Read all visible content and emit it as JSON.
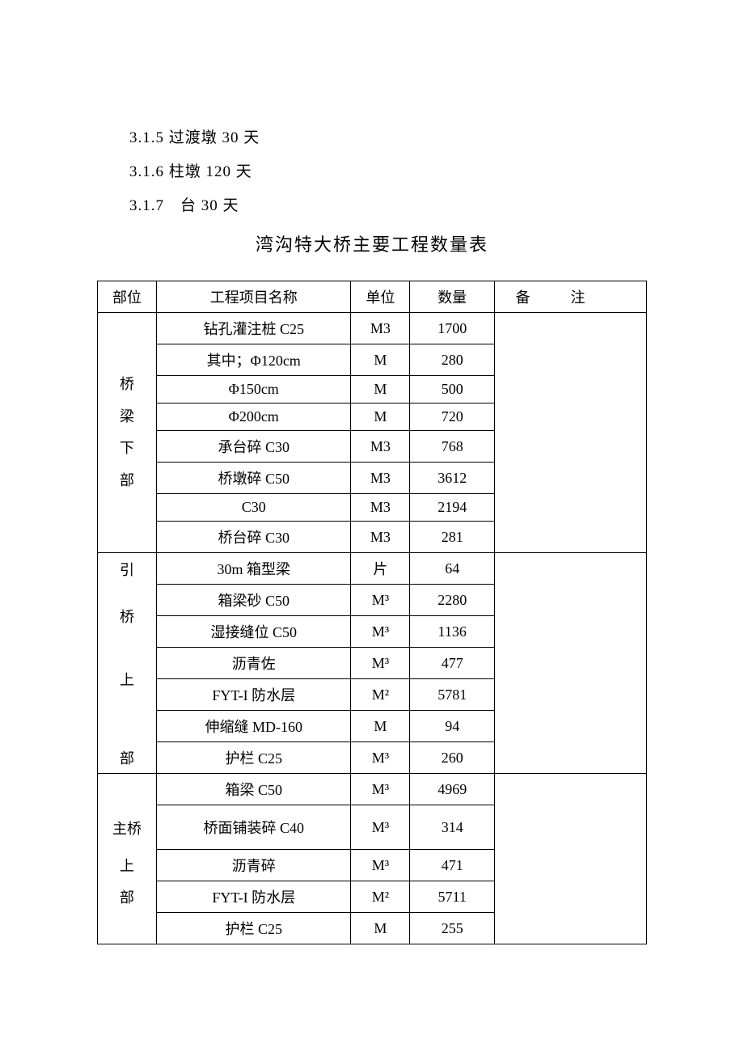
{
  "textLines": [
    "3.1.5  过渡墩 30 天",
    "3.1.6  柱墩 120 天",
    "3.1.7 台 30 天"
  ],
  "tableTitle": "湾沟特大桥主要工程数量表",
  "headers": {
    "section": "部位",
    "name": "工程项目名称",
    "unit": "单位",
    "qty": "数量",
    "remark": "备注"
  },
  "sections": {
    "s1": "桥\n梁\n下\n部",
    "s2_1": "引",
    "s2_2": "桥",
    "s2_3": "上",
    "s2_4": "部",
    "s3_1": "主桥",
    "s3_2": "上",
    "s3_3": "部"
  },
  "rows": {
    "r1": {
      "name": "钻孔灌注桩 C25",
      "unit": "M3",
      "qty": "1700"
    },
    "r2": {
      "name": "其中；Φ120cm",
      "unit": "M",
      "qty": "280"
    },
    "r3": {
      "name": "Φ150cm",
      "unit": "M",
      "qty": "500"
    },
    "r4": {
      "name": "Φ200cm",
      "unit": "M",
      "qty": "720"
    },
    "r5": {
      "name": "承台碎 C30",
      "unit": "M3",
      "qty": "768"
    },
    "r6": {
      "name": "桥墩碎 C50",
      "unit": "M3",
      "qty": "3612"
    },
    "r7": {
      "name": "C30",
      "unit": "M3",
      "qty": "2194"
    },
    "r8": {
      "name": "桥台碎 C30",
      "unit": "M3",
      "qty": "281"
    },
    "r9": {
      "name": "30m 箱型梁",
      "unit": "片",
      "qty": "64"
    },
    "r10": {
      "name": "箱梁砂 C50",
      "unit": "M³",
      "qty": "2280"
    },
    "r11": {
      "name": "湿接缝位 C50",
      "unit": "M³",
      "qty": "1136"
    },
    "r12": {
      "name": "沥青佐",
      "unit": "M³",
      "qty": "477"
    },
    "r13": {
      "name": "FYT-I 防水层",
      "unit": "M²",
      "qty": "5781"
    },
    "r14": {
      "name": "伸缩缝 MD-160",
      "unit": "M",
      "qty": "94"
    },
    "r15": {
      "name": "护栏 C25",
      "unit": "M³",
      "qty": "260"
    },
    "r16": {
      "name": "箱梁 C50",
      "unit": "M³",
      "qty": "4969"
    },
    "r17": {
      "name": "桥面铺装碎 C40",
      "unit": "M³",
      "qty": "314"
    },
    "r18": {
      "name": "沥青碎",
      "unit": "M³",
      "qty": "471"
    },
    "r19": {
      "name": "FYT-I 防水层",
      "unit": "M²",
      "qty": "5711"
    },
    "r20": {
      "name": "护栏 C25",
      "unit": "M",
      "qty": "255"
    }
  }
}
